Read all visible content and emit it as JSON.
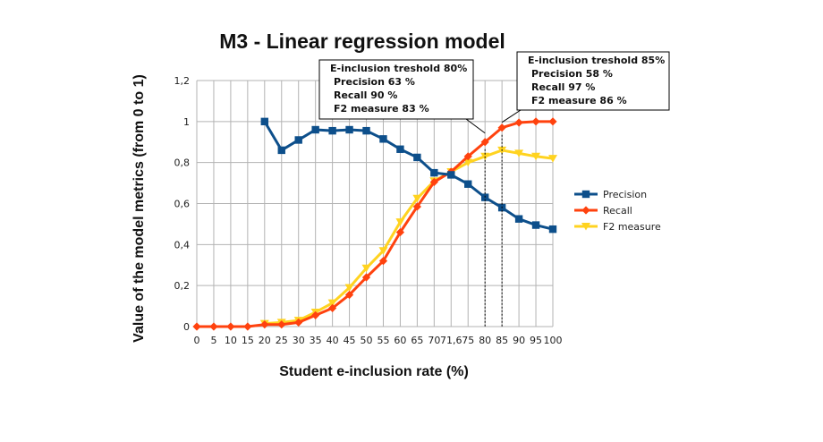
{
  "chart_data": {
    "type": "line",
    "title": "M3 - Linear regression model",
    "xlabel": "Student e-inclusion rate (%)",
    "ylabel": "Value of the model metrics (from 0 to 1)",
    "categories": [
      "0",
      "5",
      "10",
      "15",
      "20",
      "25",
      "30",
      "35",
      "40",
      "45",
      "50",
      "55",
      "60",
      "65",
      "70",
      "71,6",
      "75",
      "80",
      "85",
      "90",
      "95",
      "100"
    ],
    "y_ticks": [
      "0",
      "0,2",
      "0,4",
      "0,6",
      "0,8",
      "1",
      "1,2"
    ],
    "ylim": [
      0,
      1.2
    ],
    "grid": "horizontal and vertical",
    "legend_position": "right",
    "series": [
      {
        "name": "Precision",
        "color": "#0d4f8b",
        "marker": "square",
        "values": [
          null,
          null,
          null,
          null,
          1.0,
          0.86,
          0.91,
          0.96,
          0.955,
          0.96,
          0.955,
          0.915,
          0.865,
          0.825,
          0.75,
          0.74,
          0.695,
          0.63,
          0.58,
          0.525,
          0.495,
          0.475
        ]
      },
      {
        "name": "Recall",
        "color": "#ff420e",
        "marker": "diamond",
        "values": [
          0.0,
          0.0,
          0.0,
          0.0,
          0.01,
          0.01,
          0.02,
          0.055,
          0.09,
          0.155,
          0.24,
          0.32,
          0.46,
          0.585,
          0.705,
          0.755,
          0.83,
          0.9,
          0.97,
          0.995,
          1.0,
          1.0
        ]
      },
      {
        "name": "F2 measure",
        "color": "#ffd320",
        "marker": "triangle-down",
        "values": [
          null,
          null,
          null,
          null,
          0.015,
          0.02,
          0.03,
          0.07,
          0.115,
          0.19,
          0.285,
          0.37,
          0.51,
          0.625,
          0.71,
          0.755,
          0.8,
          0.83,
          0.86,
          0.845,
          0.83,
          0.82
        ]
      }
    ],
    "annotations": [
      {
        "category": "80",
        "lines": [
          "E-inclusion treshold 80%",
          "Precision 63 %",
          "Recall 90 %",
          "F2 measure 83 %"
        ]
      },
      {
        "category": "85",
        "lines": [
          "E-inclusion treshold 85%",
          "Precision 58 %",
          "Recall 97 %",
          "F2 measure 86 %"
        ]
      }
    ]
  }
}
